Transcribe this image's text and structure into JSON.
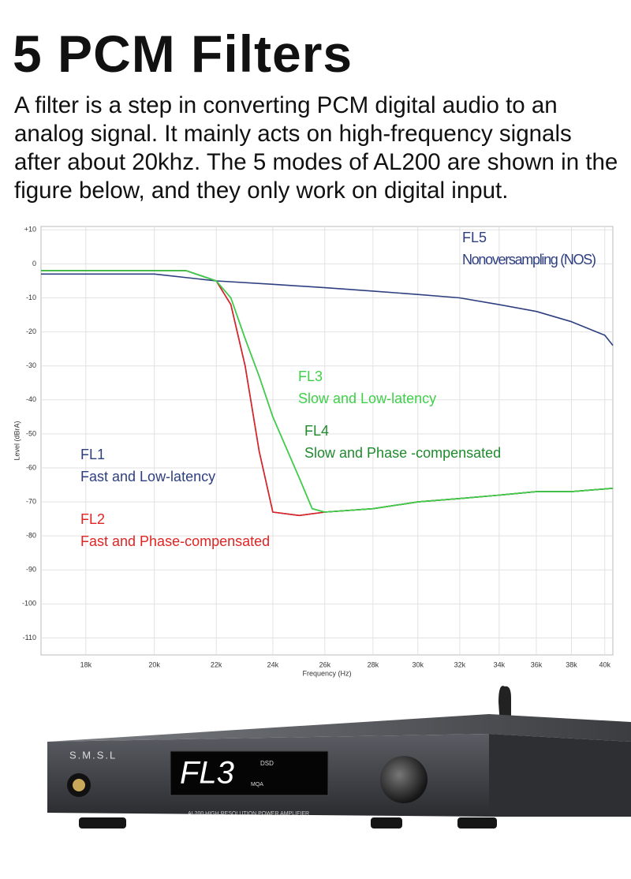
{
  "header": {
    "title": "5 PCM Filters",
    "intro": "A filter is a step in converting PCM digital audio to an analog signal. It mainly acts on high-frequency signals after about 20khz. The 5 modes of AL200 are shown in the figure below, and they only work on digital input."
  },
  "chart_data": {
    "type": "line",
    "x_label": "Frequency (Hz)",
    "y_label": "Level (dBrA)",
    "x_scale": "log",
    "grid": true,
    "xlim": [
      16800,
      40500
    ],
    "ylim": [
      -115,
      11
    ],
    "xticks": [
      {
        "value": 18000,
        "label": "18k"
      },
      {
        "value": 20000,
        "label": "20k"
      },
      {
        "value": 22000,
        "label": "22k"
      },
      {
        "value": 24000,
        "label": "24k"
      },
      {
        "value": 26000,
        "label": "26k"
      },
      {
        "value": 28000,
        "label": "28k"
      },
      {
        "value": 30000,
        "label": "30k"
      },
      {
        "value": 32000,
        "label": "32k"
      },
      {
        "value": 34000,
        "label": "34k"
      },
      {
        "value": 36000,
        "label": "36k"
      },
      {
        "value": 38000,
        "label": "38k"
      },
      {
        "value": 40000,
        "label": "40k"
      }
    ],
    "yticks": [
      {
        "value": 10,
        "label": "+10"
      },
      0,
      -10,
      -20,
      -30,
      -40,
      -50,
      -60,
      -70,
      -80,
      -90,
      -100,
      -110
    ],
    "series": [
      {
        "name": "FL5",
        "description": "Nonoversampling (NOS)",
        "color": "#2e3f80",
        "x": [
          16800,
          20000,
          22000,
          24000,
          26000,
          28000,
          30000,
          32000,
          34000,
          36000,
          38000,
          40000,
          40500
        ],
        "values": [
          -3,
          -3,
          -5,
          -6,
          -7,
          -8,
          -9,
          -10,
          -12,
          -14,
          -17,
          -21,
          -24
        ]
      },
      {
        "name": "FL1",
        "description": "Fast and Low-latency",
        "color": "#2e3f80",
        "x": [
          16800,
          20000,
          21000,
          22000,
          22500,
          23000,
          23500,
          24000,
          25000,
          26000,
          28000,
          30000,
          32000,
          34000,
          36000,
          38000,
          40500
        ],
        "values": [
          -2,
          -2,
          -2,
          -5,
          -12,
          -30,
          -55,
          -73,
          -74,
          -73,
          -72,
          -70,
          -69,
          -68,
          -67,
          -67,
          -66
        ]
      },
      {
        "name": "FL2",
        "description": "Fast and Phase-compensated",
        "color": "#e02424",
        "x": [
          16800,
          20000,
          21000,
          22000,
          22500,
          23000,
          23500,
          24000,
          25000,
          26000,
          28000,
          30000,
          32000,
          34000,
          36000,
          38000,
          40500
        ],
        "values": [
          -2,
          -2,
          -2,
          -5,
          -12,
          -30,
          -55,
          -73,
          -74,
          -73,
          -72,
          -70,
          -69,
          -68,
          -67,
          -67,
          -66
        ]
      },
      {
        "name": "FL4",
        "description": "Slow and Phase -compensated",
        "color": "#1f8a2e",
        "x": [
          16800,
          20000,
          21000,
          22000,
          22500,
          23000,
          23500,
          24000,
          25000,
          25500,
          26000,
          28000,
          30000,
          32000,
          34000,
          36000,
          38000,
          40500
        ],
        "values": [
          -2,
          -2,
          -2,
          -5,
          -10,
          -22,
          -33,
          -45,
          -63,
          -72,
          -73,
          -72,
          -70,
          -69,
          -68,
          -67,
          -67,
          -66
        ]
      },
      {
        "name": "FL3",
        "description": "Slow and Low-latency",
        "color": "#3fd04a",
        "x": [
          16800,
          20000,
          21000,
          22000,
          22500,
          23000,
          23500,
          24000,
          25000,
          25500,
          26000,
          28000,
          30000,
          32000,
          34000,
          36000,
          38000,
          40500
        ],
        "values": [
          -2,
          -2,
          -2,
          -5,
          -10,
          -22,
          -33,
          -45,
          -63,
          -72,
          -73,
          -72,
          -70,
          -69,
          -68,
          -67,
          -67,
          -66
        ]
      }
    ]
  },
  "device": {
    "brand": "S.M.S.L",
    "display": "FL3",
    "format": "DSD",
    "badge": "MQA",
    "model": "AL200 HIGH RESOLUTION POWER AMPLIFIER"
  }
}
